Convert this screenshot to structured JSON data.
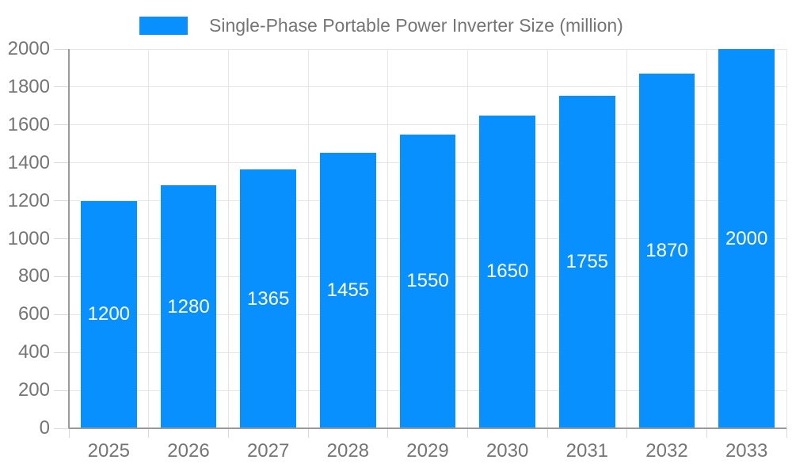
{
  "chart_data": {
    "type": "bar",
    "title": "Single-Phase Portable Power Inverter Size (million)",
    "series": [
      {
        "name": "Single-Phase Portable Power Inverter Size (million)",
        "values": [
          1200,
          1280,
          1365,
          1455,
          1550,
          1650,
          1755,
          1870,
          2000
        ]
      }
    ],
    "categories": [
      "2025",
      "2026",
      "2027",
      "2028",
      "2029",
      "2030",
      "2031",
      "2032",
      "2033"
    ],
    "values": [
      1200,
      1280,
      1365,
      1455,
      1550,
      1650,
      1755,
      1870,
      2000
    ],
    "bar_labels": [
      "1200",
      "1280",
      "1365",
      "1455",
      "1550",
      "1650",
      "1755",
      "1870",
      "2000"
    ],
    "xlabel": "",
    "ylabel": "",
    "ylim": [
      0,
      2000
    ],
    "yticks": [
      0,
      200,
      400,
      600,
      800,
      1000,
      1200,
      1400,
      1600,
      1800,
      2000
    ],
    "grid": true,
    "legend_position": "top-center",
    "bar_color": "#0990ff",
    "bar_label_color": "#ffffff",
    "axis_text_color": "#757575",
    "grid_color": "#e6e6e6",
    "tick_color": "#d9d9d9",
    "axis_line_color": "#999999",
    "background_color": "#ffffff"
  }
}
